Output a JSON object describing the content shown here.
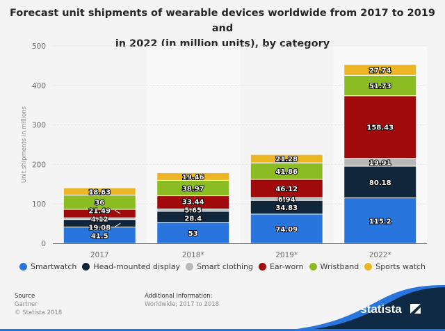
{
  "chart_data": {
    "type": "bar",
    "stacked": true,
    "title": "Forecast unit shipments of wearable devices worldwide from 2017 to 2019 and in 2022 (in million units), by category",
    "title_lines": [
      "Forecast unit shipments of wearable devices worldwide from 2017 to 2019 and",
      "in 2022 (in million units), by category"
    ],
    "xlabel": "",
    "ylabel": "Unit shipments in millions",
    "ylim": [
      0,
      500
    ],
    "yticks": [
      0,
      100,
      200,
      300,
      400,
      500
    ],
    "grid": true,
    "legend_position": "bottom",
    "categories": [
      "2017",
      "2018*",
      "2019*",
      "2022*"
    ],
    "series": [
      {
        "name": "Smartwatch",
        "color": "#2876dd",
        "values": [
          41.5,
          53,
          74.09,
          115.2
        ]
      },
      {
        "name": "Head-mounted display",
        "color": "#10263b",
        "values": [
          19.08,
          28.4,
          34.83,
          80.18
        ]
      },
      {
        "name": "Smart clothing",
        "color": "#b7b7b7",
        "values": [
          4.12,
          5.65,
          6.94,
          19.91
        ]
      },
      {
        "name": "Ear-worn",
        "color": "#a10a0a",
        "values": [
          21.49,
          33.44,
          46.12,
          158.43
        ]
      },
      {
        "name": "Wristband",
        "color": "#8bbc21",
        "values": [
          36,
          38.97,
          41.86,
          51.73
        ]
      },
      {
        "name": "Sports watch",
        "color": "#edb526",
        "values": [
          18.63,
          19.46,
          21.28,
          27.74
        ]
      }
    ]
  },
  "footer": {
    "source_label": "Source",
    "source_value": "Gartner",
    "copyright": "© Statista 2018",
    "additional_label": "Additional Information:",
    "additional_value": "Worldwide; 2017 to 2018",
    "brand": "statista"
  }
}
